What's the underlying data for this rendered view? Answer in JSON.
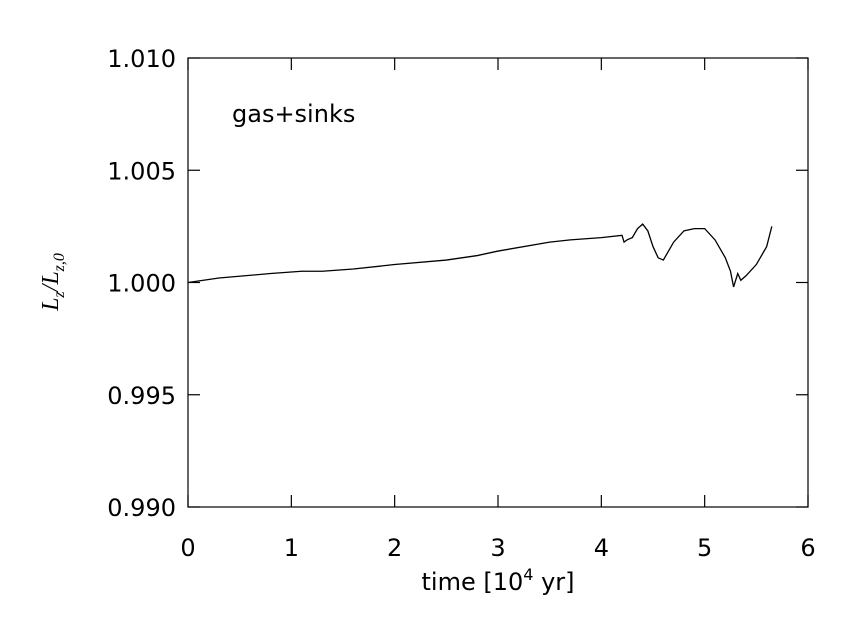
{
  "chart_data": {
    "type": "line",
    "annotation": "gas+sinks",
    "xlabel": [
      "time [10",
      "4",
      " yr]"
    ],
    "ylabel": [
      "L",
      "z",
      "/L",
      "z,0"
    ],
    "xlim": [
      0,
      6
    ],
    "xticks": [
      0,
      1,
      2,
      3,
      4,
      5,
      6
    ],
    "ylim": [
      0.99,
      1.01
    ],
    "yticks": [
      {
        "value": 0.99,
        "label": "0.990"
      },
      {
        "value": 0.995,
        "label": "0.995"
      },
      {
        "value": 1.0,
        "label": "1.000"
      },
      {
        "value": 1.005,
        "label": "1.005"
      },
      {
        "value": 1.01,
        "label": "1.010"
      }
    ],
    "color": "#000000",
    "x": [
      0,
      0.3,
      0.8,
      1.1,
      1.3,
      1.6,
      2.0,
      2.5,
      2.8,
      3.0,
      3.5,
      3.7,
      4.0,
      4.2,
      4.22,
      4.25,
      4.3,
      4.35,
      4.4,
      4.45,
      4.5,
      4.55,
      4.6,
      4.7,
      4.8,
      4.9,
      5.0,
      5.1,
      5.2,
      5.25,
      5.28,
      5.32,
      5.35,
      5.4,
      5.5,
      5.6,
      5.65
    ],
    "values": [
      1.0,
      1.0002,
      1.0004,
      1.0005,
      1.0005,
      1.0006,
      1.0008,
      1.001,
      1.0012,
      1.0014,
      1.0018,
      1.0019,
      1.002,
      1.0021,
      1.0018,
      1.0019,
      1.002,
      1.0024,
      1.0026,
      1.0023,
      1.0016,
      1.0011,
      1.001,
      1.0018,
      1.0023,
      1.0024,
      1.0024,
      1.0019,
      1.0011,
      1.0005,
      0.9998,
      1.0004,
      1.0001,
      1.0003,
      1.0008,
      1.0016,
      1.0025
    ]
  }
}
